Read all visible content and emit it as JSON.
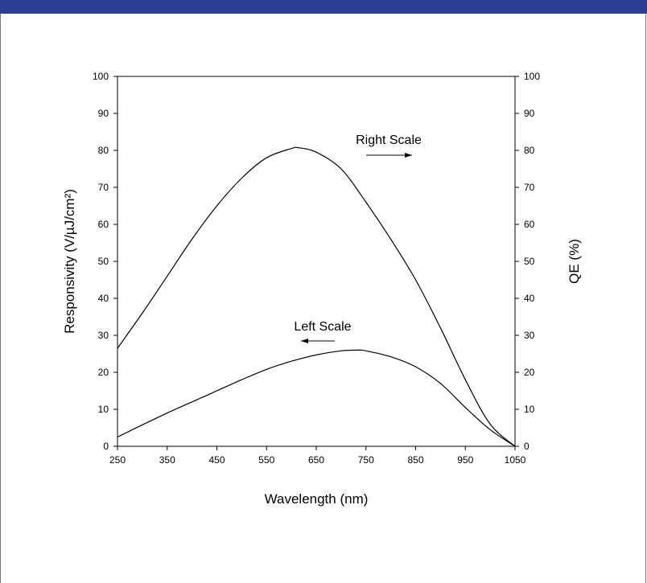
{
  "header": {
    "bar_color": "#2e3f93"
  },
  "chart_data": {
    "type": "line",
    "xlabel": "Wavelength (nm)",
    "ylabel_left": "Responsivity (V/µJ/cm²)",
    "ylabel_right": "QE (%)",
    "xlim": [
      250,
      1050
    ],
    "ylim_left": [
      0,
      100
    ],
    "ylim_right": [
      0,
      100
    ],
    "x_ticks": [
      "250",
      "350",
      "450",
      "550",
      "650",
      "750",
      "850",
      "950",
      "1050"
    ],
    "y_ticks_left": [
      "0",
      "10",
      "20",
      "30",
      "40",
      "50",
      "60",
      "70",
      "80",
      "90",
      "100"
    ],
    "y_ticks_right": [
      "0",
      "10",
      "20",
      "30",
      "40",
      "50",
      "60",
      "70",
      "80",
      "90",
      "100"
    ],
    "grid": false,
    "line_color": "#000000",
    "series": [
      {
        "axis": "right",
        "annotation": "Right Scale",
        "arrow_direction": "right",
        "x": [
          250,
          300,
          350,
          400,
          450,
          500,
          550,
          600,
          615,
          650,
          700,
          750,
          800,
          850,
          900,
          950,
          1000,
          1050
        ],
        "y": [
          26.5,
          36,
          46,
          56,
          65,
          72.5,
          78,
          80.5,
          80.7,
          79.5,
          75,
          66,
          56,
          45,
          32,
          18,
          6,
          0
        ]
      },
      {
        "axis": "left",
        "annotation": "Left Scale",
        "arrow_direction": "left",
        "x": [
          250,
          300,
          350,
          400,
          450,
          500,
          550,
          600,
          650,
          700,
          735,
          750,
          800,
          850,
          900,
          950,
          1000,
          1050
        ],
        "y": [
          2.5,
          5.8,
          9,
          12,
          15,
          18,
          20.8,
          23,
          24.7,
          25.8,
          26,
          25.8,
          24.2,
          21.5,
          17,
          10.5,
          4.5,
          0
        ]
      }
    ]
  }
}
